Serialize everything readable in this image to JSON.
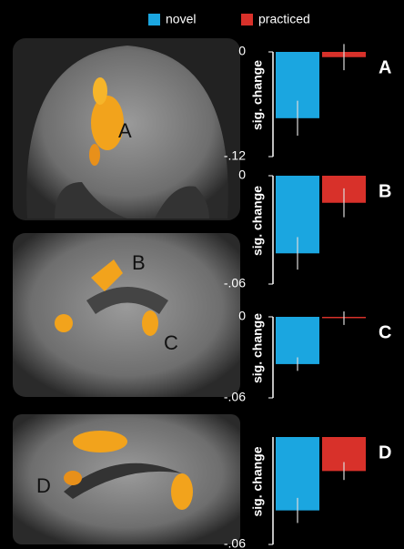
{
  "legend": [
    {
      "name": "novel",
      "color": "#1ba6e0"
    },
    {
      "name": "practiced",
      "color": "#d8312a"
    }
  ],
  "images": [
    {
      "labels": [
        "A"
      ]
    },
    {
      "labels": [
        "B",
        "C"
      ]
    },
    {
      "labels": [
        "D"
      ]
    }
  ],
  "chart_data": [
    {
      "type": "bar",
      "label": "A",
      "ylabel": "sig. change",
      "ylim": [
        -0.12,
        0
      ],
      "yticks": [
        0,
        {
          "value": -0.12,
          "label": "-.12"
        }
      ],
      "series": [
        {
          "values": [
            -0.076
          ],
          "errors": [
            0.02
          ]
        },
        {
          "values": [
            -0.006
          ],
          "errors": [
            0.015
          ]
        }
      ]
    },
    {
      "type": "bar",
      "label": "B",
      "ylabel": "sig. change",
      "ylim": [
        -0.06,
        0
      ],
      "yticks": [
        0,
        {
          "value": -0.06,
          "label": "-.06"
        }
      ],
      "series": [
        {
          "values": [
            -0.043
          ],
          "errors": [
            0.009
          ]
        },
        {
          "values": [
            -0.015
          ],
          "errors": [
            0.008
          ]
        }
      ]
    },
    {
      "type": "bar",
      "label": "C",
      "ylabel": "sig. change",
      "ylim": [
        -0.06,
        0
      ],
      "yticks": [
        0,
        {
          "value": -0.06,
          "label": "-.06"
        }
      ],
      "series": [
        {
          "values": [
            -0.035
          ],
          "errors": [
            0.005
          ]
        },
        {
          "values": [
            -0.001
          ],
          "errors": [
            0.005
          ]
        }
      ]
    },
    {
      "type": "bar",
      "label": "D",
      "ylabel": "sig. change",
      "ylim": [
        -0.06,
        0
      ],
      "yticks": [
        {
          "value": -0.06,
          "label": "-.06"
        }
      ],
      "series": [
        {
          "values": [
            -0.041
          ],
          "errors": [
            0.007
          ]
        },
        {
          "values": [
            -0.019
          ],
          "errors": [
            0.005
          ]
        }
      ]
    }
  ]
}
